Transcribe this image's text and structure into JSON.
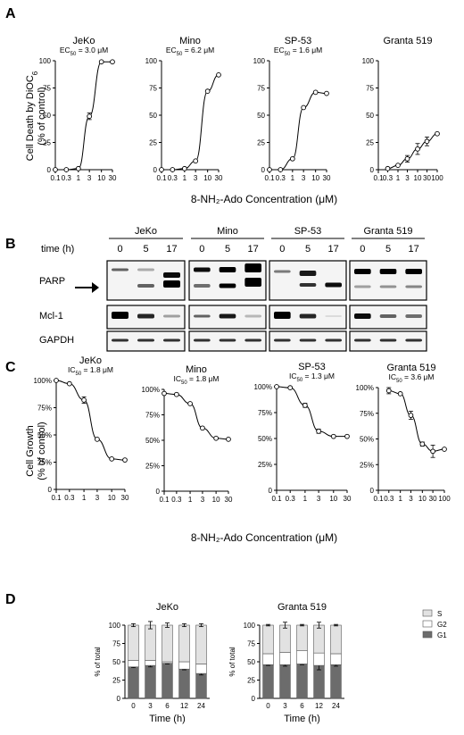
{
  "panels": {
    "A": {
      "letter": "A",
      "ylabel_lines": [
        "Cell Death by DiOC",
        "(% of control)"
      ],
      "ylabel_sub": "6",
      "xlabel": "8-NH₂-Ado Concentration (μM)",
      "y_ticks": [
        "0",
        "25",
        "50",
        "75",
        "100"
      ],
      "x_ticks_std": [
        "0.1",
        "0.3",
        "1",
        "3",
        "10",
        "30"
      ],
      "x_ticks_granta": [
        "0.1",
        "0.3",
        "1",
        "3",
        "10",
        "30",
        "100"
      ]
    },
    "B": {
      "letter": "B",
      "time_label": "time (h)",
      "cells": [
        "JeKo",
        "Mino",
        "SP-53",
        "Granta 519"
      ],
      "times": [
        "0",
        "5",
        "17"
      ],
      "rows": [
        "PARP",
        "Mcl-1",
        "GAPDH"
      ]
    },
    "C": {
      "letter": "C",
      "ylabel_lines": [
        "Cell Growth",
        "(% of control)"
      ],
      "xlabel": "8-NH₂-Ado Concentration (μM)",
      "y_ticks": [
        "0",
        "25%",
        "50%",
        "75%",
        "100%"
      ],
      "x_ticks_std": [
        "0.1",
        "0.3",
        "1",
        "3",
        "10",
        "30"
      ],
      "x_ticks_granta": [
        "0.1",
        "0.3",
        "1",
        "3",
        "10",
        "30",
        "100"
      ]
    },
    "D": {
      "letter": "D",
      "ylabel": "% of total",
      "xlabel": "Time (h)",
      "y_ticks": [
        "0",
        "25",
        "50",
        "75",
        "100"
      ],
      "legend": [
        "S",
        "G2",
        "G1"
      ]
    }
  },
  "chart_data": [
    {
      "type": "line",
      "panel": "A",
      "title": "JeKo",
      "ec50_label": "EC",
      "ec50_sub": "50",
      "ec50_value": " = 3.0 μM",
      "x": [
        0.1,
        0.3,
        1,
        3,
        10,
        30
      ],
      "y": [
        0,
        0,
        1,
        49,
        99,
        99
      ],
      "err": [
        0,
        0,
        0,
        3,
        0,
        0
      ],
      "xscale": "log",
      "xlim": [
        0.1,
        30
      ],
      "ylim": [
        0,
        100
      ]
    },
    {
      "type": "line",
      "panel": "A",
      "title": "Mino",
      "ec50_label": "EC",
      "ec50_sub": "50",
      "ec50_value": " = 6.2 μM",
      "x": [
        0.1,
        0.3,
        1,
        3,
        10,
        30
      ],
      "y": [
        0,
        0,
        1,
        8,
        72,
        87
      ],
      "err": [
        0,
        0,
        0,
        0,
        0,
        0
      ],
      "xscale": "log",
      "xlim": [
        0.1,
        30
      ],
      "ylim": [
        0,
        100
      ]
    },
    {
      "type": "line",
      "panel": "A",
      "title": "SP-53",
      "ec50_label": "EC",
      "ec50_sub": "50",
      "ec50_value": " = 1.6 μM",
      "x": [
        0.1,
        0.3,
        1,
        3,
        10,
        30
      ],
      "y": [
        0,
        0,
        10,
        57,
        71,
        70
      ],
      "err": [
        0,
        0,
        0,
        0,
        0,
        0
      ],
      "xscale": "log",
      "xlim": [
        0.1,
        30
      ],
      "ylim": [
        0,
        100
      ]
    },
    {
      "type": "line",
      "panel": "A",
      "title": "Granta 519",
      "ec50_label": "",
      "ec50_sub": "",
      "ec50_value": "",
      "x": [
        0.3,
        1,
        3,
        10,
        30,
        100
      ],
      "y": [
        1,
        4,
        10,
        19,
        26,
        33
      ],
      "err": [
        0,
        0,
        3,
        5,
        4,
        0
      ],
      "xscale": "log",
      "xlim": [
        0.1,
        100
      ],
      "ylim": [
        0,
        100
      ]
    },
    {
      "type": "line",
      "panel": "C",
      "title": "JeKo",
      "ec50_label": "IC",
      "ec50_sub": "50",
      "ec50_value": " = 1.8 μM",
      "x": [
        0.1,
        0.3,
        1,
        3,
        10,
        30
      ],
      "y": [
        100,
        97,
        82,
        46,
        28,
        27
      ],
      "err": [
        0,
        0,
        3,
        0,
        0,
        0
      ],
      "xscale": "log",
      "xlim": [
        0.1,
        30
      ],
      "ylim": [
        0,
        100
      ]
    },
    {
      "type": "line",
      "panel": "C",
      "title": "Mino",
      "ec50_label": "IC",
      "ec50_sub": "50",
      "ec50_value": " = 1.8 μM",
      "x": [
        0.1,
        0.3,
        1,
        3,
        10,
        30
      ],
      "y": [
        96,
        95,
        86,
        62,
        52,
        51
      ],
      "err": [
        0,
        0,
        0,
        0,
        0,
        0
      ],
      "xscale": "log",
      "xlim": [
        0.1,
        30
      ],
      "ylim": [
        0,
        100
      ]
    },
    {
      "type": "line",
      "panel": "C",
      "title": "SP-53",
      "ec50_label": "IC",
      "ec50_sub": "50",
      "ec50_value": " = 1.3 μM",
      "x": [
        0.1,
        0.3,
        1,
        3,
        10,
        30
      ],
      "y": [
        100,
        99,
        82,
        57,
        52,
        52
      ],
      "err": [
        0,
        0,
        2,
        2,
        0,
        0
      ],
      "xscale": "log",
      "xlim": [
        0.1,
        30
      ],
      "ylim": [
        0,
        100
      ]
    },
    {
      "type": "line",
      "panel": "C",
      "title": "Granta 519",
      "ec50_label": "IC",
      "ec50_sub": "50",
      "ec50_value": " = 3.6 μM",
      "x": [
        0.3,
        1,
        3,
        10,
        30,
        100
      ],
      "y": [
        97,
        94,
        73,
        45,
        38,
        40
      ],
      "err": [
        3,
        0,
        4,
        2,
        6,
        0
      ],
      "xscale": "log",
      "xlim": [
        0.1,
        100
      ],
      "ylim": [
        0,
        100
      ]
    },
    {
      "type": "bar",
      "panel": "D",
      "title": "JeKo",
      "stacked": true,
      "categories": [
        "0",
        "3",
        "6",
        "12",
        "24"
      ],
      "series": [
        {
          "name": "G1",
          "values": [
            43,
            45,
            48,
            40,
            34
          ],
          "err": [
            1,
            2,
            1,
            1,
            2
          ]
        },
        {
          "name": "G2",
          "values": [
            9,
            7,
            2,
            10,
            13
          ],
          "err": [
            0,
            0,
            0,
            0,
            0
          ]
        },
        {
          "name": "S",
          "values": [
            48,
            48,
            50,
            50,
            53
          ],
          "err": [
            2,
            5,
            3,
            2,
            2
          ]
        }
      ],
      "ylim": [
        0,
        100
      ]
    },
    {
      "type": "bar",
      "panel": "D",
      "title": "Granta 519",
      "stacked": true,
      "categories": [
        "0",
        "3",
        "6",
        "12",
        "24"
      ],
      "series": [
        {
          "name": "G1",
          "values": [
            46,
            46,
            47,
            45,
            46
          ],
          "err": [
            1,
            2,
            1,
            6,
            2
          ]
        },
        {
          "name": "G2",
          "values": [
            15,
            17,
            18,
            17,
            15
          ],
          "err": [
            0,
            0,
            0,
            0,
            0
          ]
        },
        {
          "name": "S",
          "values": [
            39,
            37,
            35,
            38,
            39
          ],
          "err": [
            1,
            4,
            1,
            4,
            1
          ]
        }
      ],
      "ylim": [
        0,
        100
      ]
    }
  ]
}
